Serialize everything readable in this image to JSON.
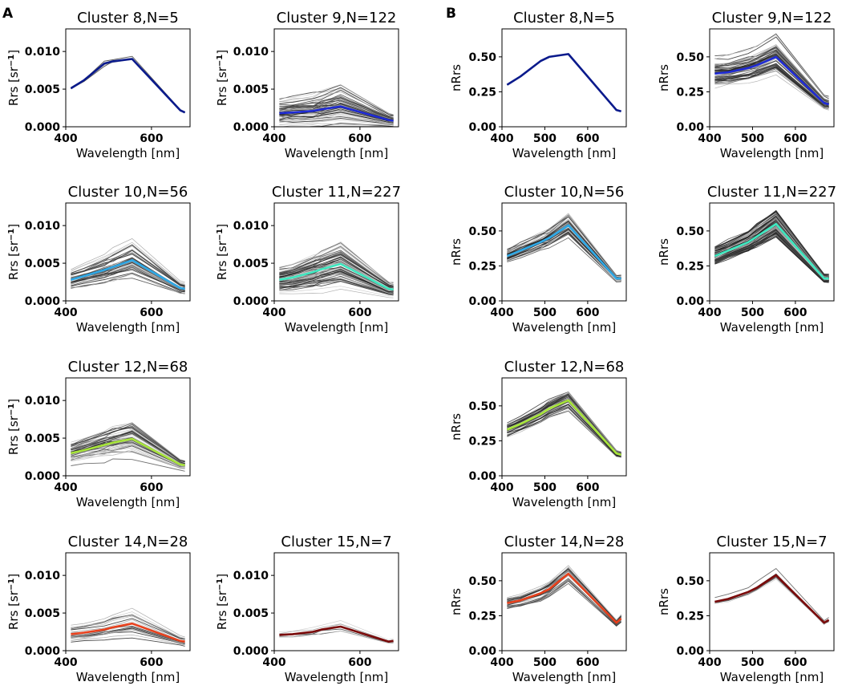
{
  "panel_labels": [
    "A",
    "B"
  ],
  "xlabel": "Wavelength [nm]",
  "ylabel_A_main": "Rrs [sr",
  "ylabel_A_exp": "−1",
  "ylabel_A_close": "]",
  "ylabel_B": "nRrs",
  "chart_data": [
    {
      "panel": "A",
      "type": "line",
      "title": "Cluster 8,N=5",
      "cluster": 8,
      "n": 5,
      "xlim": [
        400,
        690
      ],
      "ylim": [
        0,
        0.013
      ],
      "xticks": [
        400,
        600
      ],
      "yticks": [
        "0.000",
        "0.005",
        "0.010"
      ],
      "ytick_values": [
        0,
        0.005,
        0.01
      ],
      "x": [
        412,
        443,
        490,
        510,
        555,
        667,
        678
      ],
      "mean": [
        0.0051,
        0.0062,
        0.0084,
        0.0087,
        0.009,
        0.0022,
        0.0019
      ],
      "mean_color": "#0a1a8c",
      "spread": 0.00025,
      "n_drawn": 5,
      "variability": 0.05,
      "gray_ratio": 0.6
    },
    {
      "panel": "A",
      "type": "line",
      "title": "Cluster 9,N=122",
      "cluster": 9,
      "n": 122,
      "xlim": [
        400,
        690
      ],
      "ylim": [
        0,
        0.013
      ],
      "xticks": [
        400,
        600
      ],
      "yticks": [
        "0.000",
        "0.005",
        "0.010"
      ],
      "ytick_values": [
        0,
        0.005,
        0.01
      ],
      "x": [
        412,
        443,
        490,
        510,
        555,
        667,
        678
      ],
      "mean": [
        0.0018,
        0.0019,
        0.0021,
        0.0023,
        0.0027,
        0.0009,
        0.0008
      ],
      "mean_color": "#1f2bd6",
      "spread": 0.0022,
      "n_drawn": 60,
      "variability": 0.25,
      "gray_ratio": 0.5
    },
    {
      "panel": "A",
      "type": "line",
      "title": "Cluster 10,N=56",
      "cluster": 10,
      "n": 56,
      "xlim": [
        400,
        690
      ],
      "ylim": [
        0,
        0.013
      ],
      "xticks": [
        400,
        600
      ],
      "yticks": [
        "0.000",
        "0.005",
        "0.010"
      ],
      "ytick_values": [
        0,
        0.005,
        0.01
      ],
      "x": [
        412,
        443,
        490,
        510,
        555,
        667,
        678
      ],
      "mean": [
        0.0028,
        0.0033,
        0.0041,
        0.0045,
        0.0054,
        0.0017,
        0.0016
      ],
      "mean_color": "#2ea8e6",
      "spread": 0.0018,
      "n_drawn": 40,
      "variability": 0.12,
      "gray_ratio": 0.5
    },
    {
      "panel": "A",
      "type": "line",
      "title": "Cluster 11,N=227",
      "cluster": 11,
      "n": 227,
      "xlim": [
        400,
        690
      ],
      "ylim": [
        0,
        0.013
      ],
      "xticks": [
        400,
        600
      ],
      "yticks": [
        "0.000",
        "0.005",
        "0.010"
      ],
      "ytick_values": [
        0,
        0.005,
        0.01
      ],
      "x": [
        412,
        443,
        490,
        510,
        555,
        667,
        678
      ],
      "mean": [
        0.0028,
        0.0031,
        0.0038,
        0.0042,
        0.0049,
        0.0016,
        0.0015
      ],
      "mean_color": "#3ee8c0",
      "spread": 0.0022,
      "n_drawn": 90,
      "variability": 0.12,
      "gray_ratio": 0.4
    },
    {
      "panel": "A",
      "type": "line",
      "title": "Cluster 12,N=68",
      "cluster": 12,
      "n": 68,
      "xlim": [
        400,
        690
      ],
      "ylim": [
        0,
        0.013
      ],
      "xticks": [
        400,
        600
      ],
      "yticks": [
        "0.000",
        "0.005",
        "0.010"
      ],
      "ytick_values": [
        0,
        0.005,
        0.01
      ],
      "x": [
        412,
        443,
        490,
        510,
        555,
        667,
        678
      ],
      "mean": [
        0.003,
        0.0034,
        0.0041,
        0.0044,
        0.0049,
        0.0015,
        0.0014
      ],
      "mean_color": "#a8e63a",
      "spread": 0.0018,
      "n_drawn": 50,
      "variability": 0.12,
      "gray_ratio": 0.55
    },
    {
      "panel": "A",
      "type": "line",
      "title": "Cluster 14,N=28",
      "cluster": 14,
      "n": 28,
      "xlim": [
        400,
        690
      ],
      "ylim": [
        0,
        0.013
      ],
      "xticks": [
        400,
        600
      ],
      "yticks": [
        "0.000",
        "0.005",
        "0.010"
      ],
      "ytick_values": [
        0,
        0.005,
        0.01
      ],
      "x": [
        412,
        443,
        490,
        510,
        555,
        667,
        678
      ],
      "mean": [
        0.0022,
        0.0024,
        0.0028,
        0.0031,
        0.0036,
        0.0013,
        0.0012
      ],
      "mean_color": "#e8401c",
      "spread": 0.0012,
      "n_drawn": 28,
      "variability": 0.12,
      "gray_ratio": 0.65
    },
    {
      "panel": "A",
      "type": "line",
      "title": "Cluster 15,N=7",
      "cluster": 15,
      "n": 7,
      "xlim": [
        400,
        690
      ],
      "ylim": [
        0,
        0.013
      ],
      "xticks": [
        400,
        600
      ],
      "yticks": [
        "0.000",
        "0.005",
        "0.010"
      ],
      "ytick_values": [
        0,
        0.005,
        0.01
      ],
      "x": [
        412,
        443,
        490,
        510,
        555,
        667,
        678
      ],
      "mean": [
        0.0021,
        0.0022,
        0.0025,
        0.0028,
        0.0032,
        0.0012,
        0.0013
      ],
      "mean_color": "#7a0a0a",
      "spread": 0.001,
      "n_drawn": 7,
      "variability": 0.1,
      "gray_ratio": 0.7
    },
    {
      "panel": "B",
      "type": "line",
      "title": "Cluster 8,N=5",
      "cluster": 8,
      "n": 5,
      "xlim": [
        400,
        690
      ],
      "ylim": [
        0,
        0.7
      ],
      "xticks": [
        400,
        500,
        600
      ],
      "yticks": [
        "0.00",
        "0.25",
        "0.50"
      ],
      "ytick_values": [
        0,
        0.25,
        0.5
      ],
      "x": [
        412,
        443,
        490,
        510,
        555,
        667,
        678
      ],
      "mean": [
        0.3,
        0.36,
        0.47,
        0.5,
        0.52,
        0.12,
        0.11
      ],
      "mean_color": "#0a1a8c",
      "spread": 0.005,
      "n_drawn": 5,
      "variability": 0.01,
      "gray_ratio": 0.6
    },
    {
      "panel": "B",
      "type": "line",
      "title": "Cluster 9,N=122",
      "cluster": 9,
      "n": 122,
      "xlim": [
        400,
        690
      ],
      "ylim": [
        0,
        0.7
      ],
      "xticks": [
        400,
        500,
        600
      ],
      "yticks": [
        "0.00",
        "0.25",
        "0.50"
      ],
      "ytick_values": [
        0,
        0.25,
        0.5
      ],
      "x": [
        412,
        443,
        490,
        510,
        555,
        667,
        678
      ],
      "mean": [
        0.38,
        0.39,
        0.42,
        0.44,
        0.5,
        0.17,
        0.16
      ],
      "mean_color": "#1f2bd6",
      "spread": 0.09,
      "n_drawn": 60,
      "variability": 0.06,
      "gray_ratio": 0.3
    },
    {
      "panel": "B",
      "type": "line",
      "title": "Cluster 10,N=56",
      "cluster": 10,
      "n": 56,
      "xlim": [
        400,
        690
      ],
      "ylim": [
        0,
        0.7
      ],
      "xticks": [
        400,
        500,
        600
      ],
      "yticks": [
        "0.00",
        "0.25",
        "0.50"
      ],
      "ytick_values": [
        0,
        0.25,
        0.5
      ],
      "x": [
        412,
        443,
        490,
        510,
        555,
        667,
        678
      ],
      "mean": [
        0.32,
        0.36,
        0.42,
        0.45,
        0.54,
        0.16,
        0.16
      ],
      "mean_color": "#2ea8e6",
      "spread": 0.07,
      "n_drawn": 40,
      "variability": 0.05,
      "gray_ratio": 0.3
    },
    {
      "panel": "B",
      "type": "line",
      "title": "Cluster 11,N=227",
      "cluster": 11,
      "n": 227,
      "xlim": [
        400,
        690
      ],
      "ylim": [
        0,
        0.7
      ],
      "xticks": [
        400,
        500,
        600
      ],
      "yticks": [
        "0.00",
        "0.25",
        "0.50"
      ],
      "ytick_values": [
        0,
        0.25,
        0.5
      ],
      "x": [
        412,
        443,
        490,
        510,
        555,
        667,
        678
      ],
      "mean": [
        0.32,
        0.36,
        0.42,
        0.46,
        0.55,
        0.16,
        0.16
      ],
      "mean_color": "#3ee8c0",
      "spread": 0.08,
      "n_drawn": 90,
      "variability": 0.05,
      "gray_ratio": 0.2
    },
    {
      "panel": "B",
      "type": "line",
      "title": "Cluster 12,N=68",
      "cluster": 12,
      "n": 68,
      "xlim": [
        400,
        690
      ],
      "ylim": [
        0,
        0.7
      ],
      "xticks": [
        400,
        500,
        600
      ],
      "yticks": [
        "0.00",
        "0.25",
        "0.50"
      ],
      "ytick_values": [
        0,
        0.25,
        0.5
      ],
      "x": [
        412,
        443,
        490,
        510,
        555,
        667,
        678
      ],
      "mean": [
        0.33,
        0.37,
        0.44,
        0.48,
        0.54,
        0.16,
        0.15
      ],
      "mean_color": "#a8e63a",
      "spread": 0.06,
      "n_drawn": 50,
      "variability": 0.05,
      "gray_ratio": 0.3
    },
    {
      "panel": "B",
      "type": "line",
      "title": "Cluster 14,N=28",
      "cluster": 14,
      "n": 28,
      "xlim": [
        400,
        690
      ],
      "ylim": [
        0,
        0.7
      ],
      "xticks": [
        400,
        500,
        600
      ],
      "yticks": [
        "0.00",
        "0.25",
        "0.50"
      ],
      "ytick_values": [
        0,
        0.25,
        0.5
      ],
      "x": [
        412,
        443,
        490,
        510,
        555,
        667,
        678
      ],
      "mean": [
        0.34,
        0.36,
        0.41,
        0.44,
        0.55,
        0.2,
        0.23
      ],
      "mean_color": "#e8401c",
      "spread": 0.05,
      "n_drawn": 28,
      "variability": 0.05,
      "gray_ratio": 0.4
    },
    {
      "panel": "B",
      "type": "line",
      "title": "Cluster 15,N=7",
      "cluster": 15,
      "n": 7,
      "xlim": [
        400,
        690
      ],
      "ylim": [
        0,
        0.7
      ],
      "xticks": [
        400,
        500,
        600
      ],
      "yticks": [
        "0.00",
        "0.25",
        "0.50"
      ],
      "ytick_values": [
        0,
        0.25,
        0.5
      ],
      "x": [
        412,
        443,
        490,
        510,
        555,
        667,
        678
      ],
      "mean": [
        0.35,
        0.37,
        0.42,
        0.45,
        0.54,
        0.2,
        0.22
      ],
      "mean_color": "#7a0a0a",
      "spread": 0.03,
      "n_drawn": 7,
      "variability": 0.04,
      "gray_ratio": 0.5
    }
  ]
}
